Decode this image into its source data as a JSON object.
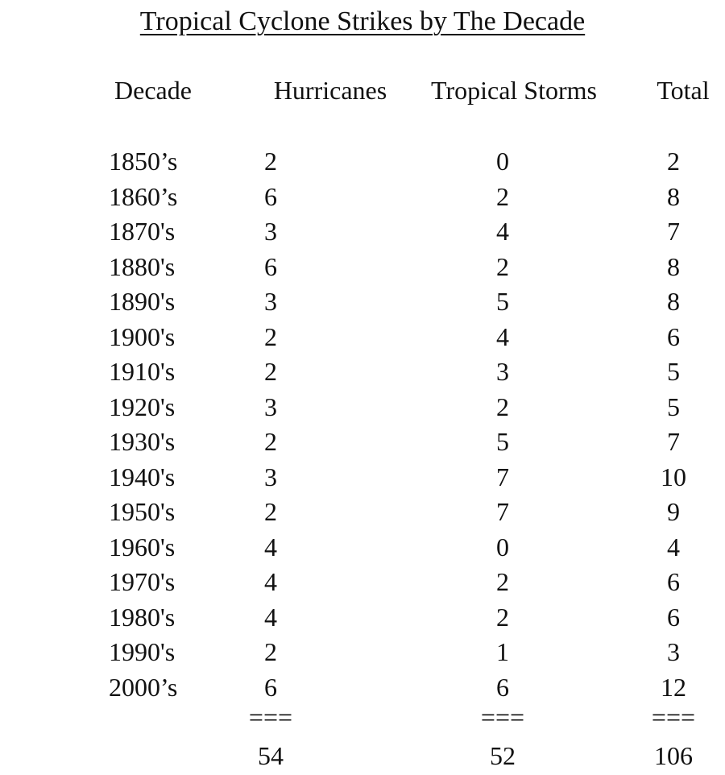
{
  "title": "Tropical Cyclone Strikes by The Decade",
  "headers": {
    "decade": "Decade",
    "hurricanes": "Hurricanes",
    "tropical_storms": "Tropical Storms",
    "total": "Total"
  },
  "rows": [
    {
      "decade": "1850’s",
      "hurricanes": "2",
      "tropical_storms": "0",
      "total": "2"
    },
    {
      "decade": "1860’s",
      "hurricanes": "6",
      "tropical_storms": "2",
      "total": "8"
    },
    {
      "decade": "1870's",
      "hurricanes": "3",
      "tropical_storms": "4",
      "total": "7"
    },
    {
      "decade": "1880's",
      "hurricanes": "6",
      "tropical_storms": "2",
      "total": "8"
    },
    {
      "decade": "1890's",
      "hurricanes": "3",
      "tropical_storms": "5",
      "total": "8"
    },
    {
      "decade": "1900's",
      "hurricanes": "2",
      "tropical_storms": "4",
      "total": "6"
    },
    {
      "decade": "1910's",
      "hurricanes": "2",
      "tropical_storms": "3",
      "total": "5"
    },
    {
      "decade": "1920's",
      "hurricanes": "3",
      "tropical_storms": "2",
      "total": "5"
    },
    {
      "decade": "1930's",
      "hurricanes": "2",
      "tropical_storms": "5",
      "total": "7"
    },
    {
      "decade": "1940's",
      "hurricanes": "3",
      "tropical_storms": "7",
      "total": "10"
    },
    {
      "decade": "1950's",
      "hurricanes": "2",
      "tropical_storms": "7",
      "total": "9"
    },
    {
      "decade": "1960's",
      "hurricanes": "4",
      "tropical_storms": "0",
      "total": "4"
    },
    {
      "decade": "1970's",
      "hurricanes": "4",
      "tropical_storms": "2",
      "total": "6"
    },
    {
      "decade": "1980's",
      "hurricanes": "4",
      "tropical_storms": "2",
      "total": "6"
    },
    {
      "decade": "1990's",
      "hurricanes": "2",
      "tropical_storms": "1",
      "total": "3"
    },
    {
      "decade": "2000’s",
      "hurricanes": "6",
      "tropical_storms": "6",
      "total": "12"
    }
  ],
  "separator": "===",
  "totals": {
    "hurricanes": "54",
    "tropical_storms": "52",
    "total": "106"
  }
}
